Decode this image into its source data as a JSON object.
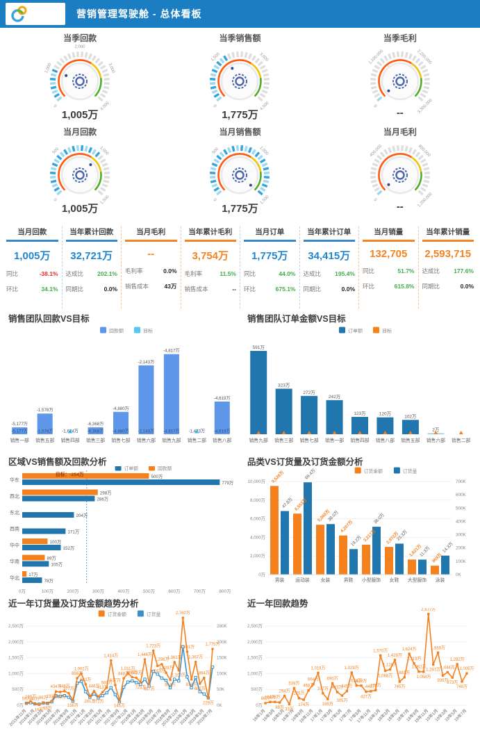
{
  "header": {
    "title": "营销管理驾驶舱 - 总体看板",
    "logo": "rings-logo"
  },
  "colors": {
    "header_blue": "#1b7ec2",
    "kpi_blue": "#1e87d0",
    "kpi_orange": "#f5831f",
    "green": "#3fae49",
    "red": "#e62b2b",
    "bar_blue": "#2176ae",
    "bar_orange": "#f5801e",
    "bar_cornflower": "#5e96ea",
    "bar_cyan": "#55c7f0",
    "line_blue": "#3d8fc4"
  },
  "gauges": {
    "items": [
      {
        "title": "当季回款",
        "value": "1,005万",
        "labels": [
          "0",
          "1,000",
          "2,000",
          "3,000",
          "4,000"
        ],
        "progress": 0.25
      },
      {
        "title": "当季销售额",
        "value": "1,775万",
        "labels": [
          "0",
          "1,500",
          "3,000",
          "4,500"
        ],
        "progress": 0.39
      },
      {
        "title": "当季毛利",
        "value": "--",
        "labels": [
          "0",
          "1,100,000",
          "2,200,000",
          "3,300,000"
        ],
        "progress": 0.02
      },
      {
        "title": "当月回款",
        "value": "1,005万",
        "labels": [
          "0",
          "500",
          "1,000",
          "1,500"
        ],
        "progress": 0.67
      },
      {
        "title": "当月销售额",
        "value": "1,775万",
        "labels": [
          "0",
          "500",
          "1,000",
          "1,500"
        ],
        "progress": 1.0
      },
      {
        "title": "当月毛利",
        "value": "--",
        "labels": [
          "0",
          "400,000",
          "800,000",
          "1,200,000"
        ],
        "progress": 0.02
      }
    ]
  },
  "kpi": {
    "columns": [
      {
        "title": "当月回款",
        "theme": "blue",
        "value": "1,005万",
        "rows": [
          {
            "label": "同比",
            "value": "-38.1%",
            "color": "red"
          },
          {
            "label": "环比",
            "value": "34.1%",
            "color": "green"
          }
        ]
      },
      {
        "title": "当年累计回款",
        "theme": "blue",
        "value": "32,721万",
        "rows": [
          {
            "label": "达成比",
            "value": "202.1%",
            "color": "green"
          },
          {
            "label": "同期比",
            "value": "0.0%",
            "color": "dark"
          }
        ]
      },
      {
        "title": "当月毛利",
        "theme": "orange",
        "value": "--",
        "rows": [
          {
            "label": "毛利率",
            "value": "0.0%",
            "color": "dark"
          },
          {
            "label": "销售成本",
            "value": "43万",
            "color": "dark"
          }
        ]
      },
      {
        "title": "当年累计毛利",
        "theme": "orange",
        "value": "3,754万",
        "rows": [
          {
            "label": "毛利率",
            "value": "11.5%",
            "color": "green"
          },
          {
            "label": "销售成本",
            "value": "--",
            "color": "dark"
          }
        ]
      },
      {
        "title": "当月订单",
        "theme": "blue",
        "value": "1,775万",
        "rows": [
          {
            "label": "同比",
            "value": "44.0%",
            "color": "green"
          },
          {
            "label": "环比",
            "value": "675.1%",
            "color": "green"
          }
        ]
      },
      {
        "title": "当年累计订单",
        "theme": "blue",
        "value": "34,415万",
        "rows": [
          {
            "label": "达成比",
            "value": "195.4%",
            "color": "green"
          },
          {
            "label": "同期比",
            "value": "0.0%",
            "color": "dark"
          }
        ]
      },
      {
        "title": "当月销量",
        "theme": "orange",
        "value": "132,705",
        "rows": [
          {
            "label": "同比",
            "value": "51.7%",
            "color": "green"
          },
          {
            "label": "环比",
            "value": "615.8%",
            "color": "green"
          }
        ]
      },
      {
        "title": "当年累计销量",
        "theme": "orange",
        "value": "2,593,715",
        "rows": [
          {
            "label": "达成比",
            "value": "177.6%",
            "color": "green"
          },
          {
            "label": "同期比",
            "value": "0.0%",
            "color": "dark"
          }
        ]
      }
    ]
  },
  "chart_data": [
    {
      "id": "team_collection",
      "type": "bar",
      "title": "销售团队回款VS目标",
      "legend": [
        {
          "label": "回款额",
          "color": "#5e96ea"
        },
        {
          "label": "目标",
          "color": "#55c7f0"
        }
      ],
      "categories": [
        "销售一部",
        "销售五部",
        "销售四部",
        "销售三部",
        "销售七部",
        "销售六部",
        "销售九部",
        "销售二部",
        "销售八部"
      ],
      "bar_value_labels": [
        "-5,177万",
        "-1,578万",
        "",
        "-6,368万",
        "-4,880万",
        "-2,143万",
        "-4,817万",
        "",
        "-4,619万"
      ],
      "target_labels": [
        "-5,177万",
        "-1,578万",
        "-1,674万",
        "-6,368万",
        "-4,880万",
        "-2,143万",
        "-4,817万",
        "-1,473万",
        "-4,619万"
      ],
      "bar_heights_pct": [
        8,
        24,
        0,
        8,
        26,
        80,
        93,
        0,
        38
      ],
      "target_marker": [
        false,
        false,
        true,
        false,
        false,
        false,
        false,
        true,
        false
      ]
    },
    {
      "id": "team_order",
      "type": "bar2",
      "title": "销售团队订单金额VS目标",
      "legend": [
        {
          "label": "订单额",
          "color": "#2176ae"
        },
        {
          "label": "目标",
          "color": "#f5801e"
        }
      ],
      "categories": [
        "销售九部",
        "销售三部",
        "销售七部",
        "销售一部",
        "销售四部",
        "销售八部",
        "销售五部",
        "销售六部",
        "销售二部"
      ],
      "values": [
        591,
        323,
        272,
        242,
        123,
        120,
        102,
        2,
        null
      ],
      "value_labels": [
        "591万",
        "323万",
        "272万",
        "242万",
        "123万",
        "120万",
        "102万",
        "2万",
        ""
      ],
      "ymax": 591
    },
    {
      "id": "region",
      "type": "hbar",
      "title": "区域VS销售额及回款分析",
      "legend": [
        {
          "label": "订单额",
          "color": "#2176ae"
        },
        {
          "label": "回款额",
          "color": "#f5801e"
        }
      ],
      "categories": [
        "华东",
        "西北",
        "东北",
        "西南",
        "华中",
        "华南",
        "华北"
      ],
      "order_values": [
        779,
        286,
        204,
        171,
        152,
        105,
        78
      ],
      "order_labels": [
        "779万",
        "286万",
        "204万",
        "171万",
        "152万",
        "105万",
        "78万"
      ],
      "collection_values": [
        500,
        298,
        null,
        null,
        100,
        89,
        17
      ],
      "collection_labels": [
        "500万",
        "298万",
        "",
        "",
        "100万",
        "89万",
        "17万"
      ],
      "target_value": 254,
      "target_label": "目标：-254万",
      "x_ticks": [
        "0万",
        "100万",
        "200万",
        "300万",
        "400万",
        "500万",
        "600万",
        "700万",
        "800万"
      ],
      "xmax": 800
    },
    {
      "id": "category",
      "type": "dualbar",
      "title": "品类VS订货量及订货金额分析",
      "legend": [
        {
          "label": "订货金额",
          "color": "#f5801e"
        },
        {
          "label": "订货量",
          "color": "#2176ae"
        }
      ],
      "categories": [
        "男装",
        "运动装",
        "女装",
        "男鞋",
        "小型服饰",
        "女鞋",
        "大型服饰",
        "泳装"
      ],
      "amount_values": [
        9526,
        6553,
        5360,
        4207,
        3217,
        2972,
        1621,
        959
      ],
      "amount_labels": [
        "9,526万",
        "6,553万",
        "5,360万",
        "4,207万",
        "3,217万",
        "2,972万",
        "1,621万",
        "959万"
      ],
      "qty_values_k": [
        478,
        694,
        380,
        192,
        360,
        233,
        113,
        143
      ],
      "qty_labels": [
        "47.8万",
        "69.4万",
        "38.0万",
        "19.2万",
        "36.0万",
        "23.3万",
        "11.3万",
        "14.3万"
      ],
      "left_ticks": [
        "0万",
        "2,000万",
        "4,000万",
        "6,000万",
        "8,000万",
        "10,000万"
      ],
      "left_max": 10000,
      "right_ticks": [
        "0K",
        "100K",
        "200K",
        "300K",
        "400K",
        "500K",
        "600K",
        "700K"
      ],
      "right_max": 700
    },
    {
      "id": "order_trend",
      "type": "line2",
      "title": "近一年订货量及订货金额趋势分析",
      "legend": [
        {
          "label": "订货金额",
          "color": "#f5801e"
        },
        {
          "label": "订货量",
          "color": "#3d8fc4"
        }
      ],
      "x_labels": [
        "2015年11月",
        "2016年1月",
        "2016年3月",
        "2016年5月",
        "2016年7月",
        "2016年9月",
        "2016年11月",
        "2017年1月",
        "2017年3月",
        "2017年5月",
        "2017年7月",
        "2017年9月",
        "2017年11月",
        "2018年1月",
        "2018年3月",
        "2018年5月",
        "2018年7月",
        "2018年9月",
        "2018年11月",
        "2019年1月",
        "2019年3月",
        "2019年5月",
        "2019年7月"
      ],
      "amount_values": [
        59,
        123,
        40,
        16,
        86,
        65,
        133,
        434,
        418,
        446,
        377,
        158,
        856,
        1002,
        663,
        281,
        446,
        272,
        413,
        560,
        1414,
        637,
        145,
        848,
        1011,
        887,
        863,
        729,
        1446,
        667,
        1723,
        1243,
        1296,
        1029,
        804,
        1361,
        1103,
        2760,
        1691,
        814,
        1367,
        682,
        864,
        229,
        1775
      ],
      "qty_values_k": [
        7,
        9,
        5,
        4,
        8,
        7,
        12,
        33,
        32,
        34,
        28,
        14,
        78,
        85,
        48,
        28,
        40,
        26,
        34,
        44,
        62,
        38,
        12,
        64,
        82,
        86,
        80,
        74,
        92,
        68,
        120,
        110,
        96,
        88,
        62,
        92,
        86,
        207,
        100,
        62,
        98,
        48,
        40,
        26,
        135
      ],
      "left_ticks": [
        "0万",
        "500万",
        "1,000万",
        "1,500万",
        "2,000万",
        "2,500万"
      ],
      "left_max": 2500,
      "right_ticks": [
        "0K",
        "50K",
        "100K",
        "150K",
        "200K",
        "280K"
      ],
      "right_max": 280
    },
    {
      "id": "collection_trend",
      "type": "line1",
      "title": "近一年回款趋势",
      "color": "#f5801e",
      "x_labels": [
        "16年1月",
        "16年3月",
        "16年5月",
        "16年7月",
        "16年9月",
        "16年11月",
        "17年1月",
        "17年3月",
        "17年5月",
        "17年7月",
        "17年9月",
        "17年11月",
        "18年1月",
        "18年3月",
        "18年5月",
        "18年7月",
        "18年9月",
        "18年11月",
        "19年1月",
        "19年3月",
        "19年5月",
        "19年7月"
      ],
      "values": [
        66,
        104,
        105,
        88,
        294,
        33,
        539,
        225,
        174,
        468,
        664,
        1019,
        377,
        195,
        690,
        415,
        305,
        445,
        1029,
        624,
        619,
        427,
        442,
        476,
        1570,
        1088,
        1128,
        1429,
        745,
        881,
        1624,
        1319,
        1062,
        1058,
        2877,
        1287,
        1659,
        939,
        1044,
        873,
        1292,
        748,
        1005
      ],
      "left_ticks": [
        "0万",
        "500万",
        "1,000万",
        "1,500万",
        "2,000万",
        "2,500万"
      ],
      "left_max": 2500
    }
  ]
}
